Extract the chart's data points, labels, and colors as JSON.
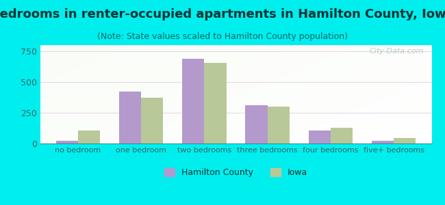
{
  "title": "Bedrooms in renter-occupied apartments in Hamilton County, Iowa",
  "subtitle": "(Note: State values scaled to Hamilton County population)",
  "categories": [
    "no bedroom",
    "one bedroom",
    "two bedrooms",
    "three bedrooms",
    "four bedrooms",
    "five+ bedrooms"
  ],
  "hamilton_values": [
    20,
    420,
    690,
    310,
    105,
    20
  ],
  "iowa_values": [
    105,
    375,
    655,
    300,
    128,
    42
  ],
  "hamilton_color": "#b399cc",
  "iowa_color": "#b8c898",
  "background_color": "#00eeee",
  "ylim": [
    0,
    800
  ],
  "yticks": [
    0,
    250,
    500,
    750
  ],
  "bar_width": 0.35,
  "title_fontsize": 13,
  "subtitle_fontsize": 9,
  "tick_fontsize": 8,
  "legend_labels": [
    "Hamilton County",
    "Iowa"
  ],
  "watermark": "City-Data.com",
  "title_color": "#003333",
  "subtitle_color": "#006666",
  "tick_color": "#336666"
}
